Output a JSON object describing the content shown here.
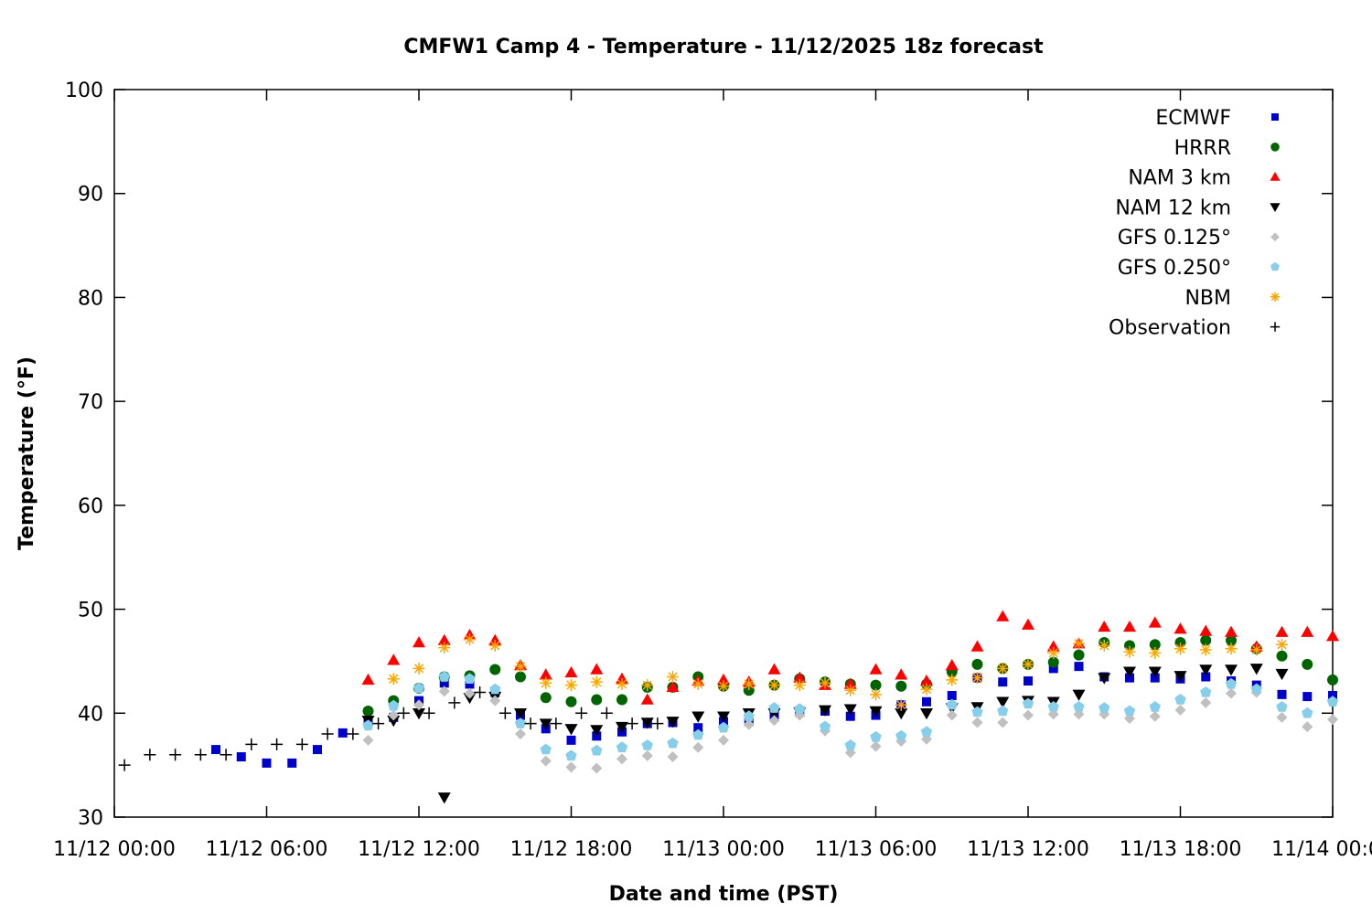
{
  "chart_data": {
    "type": "scatter",
    "title": "CMFW1 Camp 4 - Temperature - 11/12/2025 18z forecast",
    "xlabel": "Date and time (PST)",
    "ylabel": "Temperature (°F)",
    "x_units": "hours since 11/12 00:00 PST",
    "xlim": [
      0,
      48
    ],
    "ylim": [
      30,
      100
    ],
    "grid": false,
    "legend_position": "top-right",
    "x_ticks": [
      {
        "value": 0,
        "label": "11/12 00:00"
      },
      {
        "value": 6,
        "label": "11/12 06:00"
      },
      {
        "value": 12,
        "label": "11/12 12:00"
      },
      {
        "value": 18,
        "label": "11/12 18:00"
      },
      {
        "value": 24,
        "label": "11/13 00:00"
      },
      {
        "value": 30,
        "label": "11/13 06:00"
      },
      {
        "value": 36,
        "label": "11/13 12:00"
      },
      {
        "value": 42,
        "label": "11/13 18:00"
      },
      {
        "value": 48,
        "label": "11/14 00:00"
      }
    ],
    "y_ticks": [
      {
        "value": 30,
        "label": "30"
      },
      {
        "value": 40,
        "label": "40"
      },
      {
        "value": 50,
        "label": "50"
      },
      {
        "value": 60,
        "label": "60"
      },
      {
        "value": 70,
        "label": "70"
      },
      {
        "value": 80,
        "label": "80"
      },
      {
        "value": 90,
        "label": "90"
      },
      {
        "value": 100,
        "label": "100"
      }
    ],
    "series": [
      {
        "name": "ECMWF",
        "marker": "square",
        "color": "#0000cc",
        "x": [
          4,
          5,
          6,
          7,
          8,
          9,
          10,
          11,
          12,
          13,
          14,
          15,
          16,
          17,
          18,
          19,
          20,
          21,
          22,
          23,
          24,
          25,
          26,
          27,
          28,
          29,
          30,
          31,
          32,
          33,
          34,
          35,
          36,
          37,
          38,
          39,
          40,
          41,
          42,
          43,
          44,
          45,
          46,
          47,
          48
        ],
        "y": [
          36.5,
          35.8,
          35.2,
          35.2,
          36.5,
          38.1,
          39.1,
          39.6,
          41.2,
          42.9,
          42.8,
          42.0,
          39.8,
          38.5,
          37.4,
          37.8,
          38.2,
          39.0,
          39.1,
          38.6,
          39.2,
          39.2,
          39.7,
          40.1,
          40.2,
          39.7,
          39.8,
          40.8,
          41.1,
          41.7,
          43.4,
          43.0,
          43.1,
          44.3,
          44.5,
          43.5,
          43.4,
          43.4,
          43.3,
          43.5,
          43.1,
          42.7,
          41.8,
          41.6,
          41.7
        ]
      },
      {
        "name": "HRRR",
        "marker": "circle",
        "color": "#006400",
        "x": [
          10,
          11,
          12,
          13,
          14,
          15,
          16,
          17,
          18,
          19,
          20,
          21,
          22,
          23,
          24,
          25,
          26,
          27,
          28,
          29,
          30,
          31,
          32,
          33,
          34,
          35,
          36,
          37,
          38,
          39,
          40,
          41,
          42,
          43,
          44,
          45,
          46,
          47,
          48
        ],
        "y": [
          40.2,
          41.2,
          42.4,
          43.5,
          43.6,
          44.2,
          43.5,
          41.5,
          41.1,
          41.3,
          41.3,
          42.5,
          42.5,
          43.5,
          42.6,
          42.2,
          42.7,
          43.3,
          43.0,
          42.8,
          42.7,
          42.6,
          42.8,
          44.0,
          44.7,
          44.3,
          44.7,
          44.9,
          45.6,
          46.8,
          46.5,
          46.6,
          46.8,
          47.0,
          47.0,
          46.2,
          45.5,
          44.7,
          43.2
        ]
      },
      {
        "name": "NAM 3 km",
        "marker": "triangle-up",
        "color": "#ff0000",
        "x": [
          10,
          11,
          12,
          13,
          14,
          15,
          16,
          17,
          18,
          19,
          20,
          21,
          22,
          23,
          24,
          25,
          26,
          27,
          28,
          29,
          30,
          31,
          32,
          33,
          34,
          35,
          36,
          37,
          38,
          39,
          40,
          41,
          42,
          43,
          44,
          45,
          46,
          47,
          48
        ],
        "y": [
          43.2,
          45.1,
          46.8,
          47.0,
          47.5,
          47.0,
          44.6,
          43.7,
          43.9,
          44.2,
          43.3,
          41.3,
          42.5,
          43.1,
          43.2,
          43.0,
          44.2,
          43.4,
          42.7,
          42.8,
          44.2,
          43.7,
          43.1,
          44.6,
          46.4,
          49.3,
          48.5,
          46.4,
          46.7,
          48.3,
          48.3,
          48.7,
          48.1,
          47.9,
          47.8,
          46.4,
          47.8,
          47.8,
          47.4
        ]
      },
      {
        "name": "NAM 12 km",
        "marker": "triangle-down",
        "color": "#000000",
        "x": [
          10,
          11,
          12,
          13,
          14,
          15,
          16,
          17,
          18,
          19,
          20,
          21,
          22,
          23,
          24,
          25,
          26,
          27,
          28,
          29,
          30,
          31,
          32,
          33,
          34,
          35,
          36,
          37,
          38,
          39,
          40,
          41,
          42,
          43,
          44,
          45,
          46
        ],
        "y": [
          39.3,
          39.3,
          40.0,
          31.9,
          41.5,
          41.6,
          40.0,
          39.0,
          38.5,
          38.4,
          38.7,
          39.1,
          39.2,
          39.7,
          39.7,
          40.0,
          40.0,
          40.1,
          40.3,
          40.4,
          40.2,
          40.0,
          40.0,
          40.5,
          40.6,
          41.1,
          41.2,
          41.1,
          41.8,
          43.4,
          44.0,
          44.0,
          43.6,
          44.2,
          44.2,
          44.3,
          43.8
        ]
      },
      {
        "name": "GFS 0.125°",
        "marker": "diamond",
        "color": "#c0c0c0",
        "x": [
          10,
          11,
          12,
          13,
          14,
          15,
          16,
          17,
          18,
          19,
          20,
          21,
          22,
          23,
          24,
          25,
          26,
          27,
          28,
          29,
          30,
          31,
          32,
          33,
          34,
          35,
          36,
          37,
          38,
          39,
          40,
          41,
          42,
          43,
          44,
          45,
          46,
          47,
          48
        ],
        "y": [
          37.4,
          39.8,
          40.8,
          42.1,
          41.9,
          41.2,
          38.0,
          35.4,
          34.8,
          34.7,
          35.6,
          35.9,
          35.8,
          36.7,
          37.4,
          38.9,
          39.3,
          39.8,
          38.3,
          36.2,
          36.8,
          37.3,
          37.5,
          39.8,
          39.1,
          39.1,
          39.8,
          39.9,
          39.9,
          39.9,
          39.5,
          39.7,
          40.3,
          41.0,
          41.9,
          42.0,
          39.6,
          38.7,
          39.4
        ]
      },
      {
        "name": "GFS 0.250°",
        "marker": "pentagon",
        "color": "#87ceeb",
        "x": [
          10,
          11,
          12,
          13,
          14,
          15,
          16,
          17,
          18,
          19,
          20,
          21,
          22,
          23,
          24,
          25,
          26,
          27,
          28,
          29,
          30,
          31,
          32,
          33,
          34,
          35,
          36,
          37,
          38,
          39,
          40,
          41,
          42,
          43,
          44,
          45,
          46,
          47,
          48
        ],
        "y": [
          38.8,
          40.7,
          42.4,
          43.5,
          43.3,
          42.3,
          39.0,
          36.5,
          35.9,
          36.4,
          36.7,
          36.9,
          37.1,
          37.9,
          38.6,
          39.7,
          40.5,
          40.4,
          38.7,
          36.9,
          37.7,
          37.8,
          38.2,
          40.8,
          40.1,
          40.2,
          40.9,
          40.6,
          40.6,
          40.5,
          40.2,
          40.6,
          41.3,
          42.0,
          42.8,
          42.3,
          40.6,
          40.0,
          41.1
        ]
      },
      {
        "name": "NBM",
        "marker": "star",
        "color": "#ffa500",
        "x": [
          11,
          12,
          13,
          14,
          15,
          16,
          17,
          18,
          19,
          20,
          21,
          22,
          23,
          24,
          25,
          26,
          27,
          28,
          29,
          30,
          31,
          32,
          33,
          34,
          35,
          36,
          37,
          38,
          39,
          40,
          41,
          42,
          43,
          44,
          45,
          46
        ],
        "y": [
          43.3,
          44.3,
          46.3,
          47.1,
          46.5,
          44.5,
          42.9,
          42.7,
          43.0,
          42.8,
          42.7,
          43.5,
          42.8,
          42.6,
          42.8,
          42.7,
          42.7,
          42.9,
          42.2,
          41.8,
          40.8,
          42.3,
          43.2,
          43.4,
          44.3,
          44.7,
          45.8,
          46.7,
          46.5,
          45.9,
          45.8,
          46.2,
          46.1,
          46.2,
          46.1,
          46.6
        ]
      },
      {
        "name": "Observation",
        "marker": "plus",
        "color": "#000000",
        "x": [
          0.4,
          1.4,
          2.4,
          3.4,
          4.4,
          5.4,
          6.4,
          7.4,
          8.4,
          9.4,
          10.4,
          11.4,
          12.4,
          13.4,
          14.4,
          15.4,
          16.4,
          17.4,
          18.4,
          19.4,
          20.4,
          21.4
        ],
        "y": [
          35.0,
          36.0,
          36.0,
          36.0,
          36.0,
          37.0,
          37.0,
          37.0,
          38.0,
          38.0,
          39.0,
          40.0,
          40.0,
          41.0,
          42.0,
          40.0,
          39.0,
          39.0,
          40.0,
          40.0,
          39.0,
          39.0
        ]
      }
    ]
  }
}
